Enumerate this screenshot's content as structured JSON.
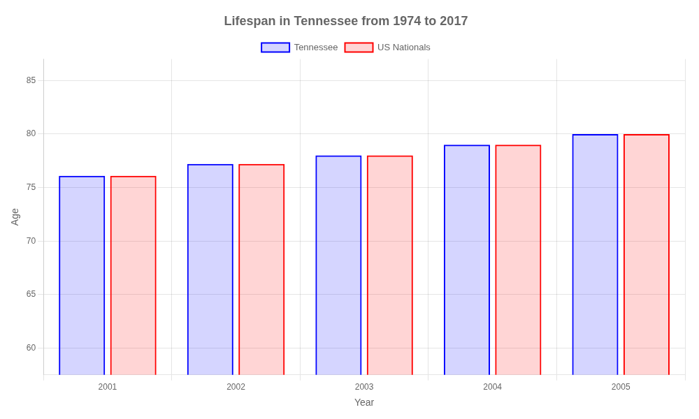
{
  "chart_data": {
    "type": "bar",
    "title": "Lifespan in Tennessee from 1974 to 2017",
    "x_label": "Year",
    "y_label": "Age",
    "categories": [
      "2001",
      "2002",
      "2003",
      "2004",
      "2005"
    ],
    "series": [
      {
        "name": "Tennessee",
        "color": "#0000ff",
        "values": [
          76.1,
          77.2,
          78.0,
          79.0,
          80.0
        ]
      },
      {
        "name": "US Nationals",
        "color": "#ff0000",
        "values": [
          76.1,
          77.2,
          78.0,
          79.0,
          80.0
        ]
      }
    ],
    "ylim": [
      57.5,
      87
    ],
    "yticks": [
      60,
      65,
      70,
      75,
      80,
      85
    ],
    "grid": true,
    "legend": "top"
  }
}
